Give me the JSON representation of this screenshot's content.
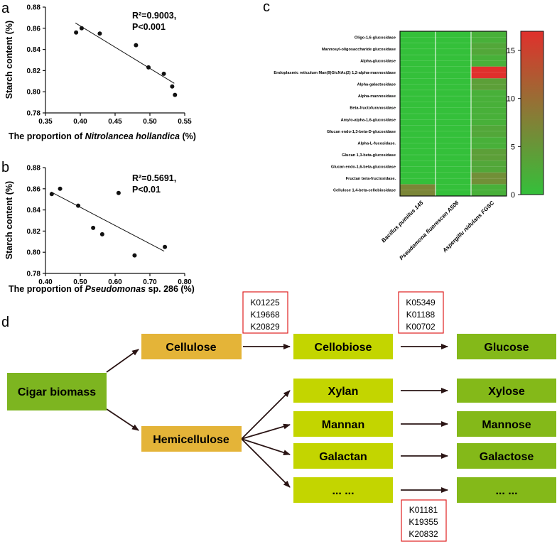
{
  "panels": {
    "a": "a",
    "b": "b",
    "c": "c",
    "d": "d"
  },
  "chart_data": [
    {
      "id": "a",
      "type": "scatter",
      "title": "",
      "ylabel": "Starch content (%)",
      "xlabel_parts": [
        {
          "t": "The proportion of ",
          "i": false
        },
        {
          "t": "Nitrolancea hollandica",
          "i": true
        },
        {
          "t": " (%)",
          "i": false
        }
      ],
      "xlim": [
        0.35,
        0.55
      ],
      "ylim": [
        0.78,
        0.88
      ],
      "xticks": [
        "0.35",
        "0.40",
        "0.45",
        "0.50",
        "0.55"
      ],
      "yticks": [
        "0.78",
        "0.80",
        "0.82",
        "0.84",
        "0.86",
        "0.88"
      ],
      "annotation": [
        "R²=0.9003,",
        "P<0.001"
      ],
      "points": [
        {
          "x": 0.394,
          "y": 0.856
        },
        {
          "x": 0.402,
          "y": 0.86
        },
        {
          "x": 0.428,
          "y": 0.855
        },
        {
          "x": 0.48,
          "y": 0.844
        },
        {
          "x": 0.498,
          "y": 0.823
        },
        {
          "x": 0.52,
          "y": 0.817
        },
        {
          "x": 0.532,
          "y": 0.805
        },
        {
          "x": 0.536,
          "y": 0.797
        }
      ],
      "fit": [
        {
          "x": 0.393,
          "y": 0.865
        },
        {
          "x": 0.535,
          "y": 0.808
        }
      ],
      "grid": false
    },
    {
      "id": "b",
      "type": "scatter",
      "title": "",
      "ylabel": "Starch content (%)",
      "xlabel_parts": [
        {
          "t": "The proportion of ",
          "i": false
        },
        {
          "t": "Pseudomonas",
          "i": true
        },
        {
          "t": " sp. 286 (%)",
          "i": false
        }
      ],
      "xlim": [
        0.4,
        0.8
      ],
      "ylim": [
        0.78,
        0.88
      ],
      "xticks": [
        "0.40",
        "0.50",
        "0.60",
        "0.70",
        "0.80"
      ],
      "yticks": [
        "0.78",
        "0.80",
        "0.82",
        "0.84",
        "0.86",
        "0.88"
      ],
      "annotation": [
        "R²=0.5691,",
        "P<0.01"
      ],
      "points": [
        {
          "x": 0.418,
          "y": 0.855
        },
        {
          "x": 0.442,
          "y": 0.86
        },
        {
          "x": 0.494,
          "y": 0.844
        },
        {
          "x": 0.537,
          "y": 0.823
        },
        {
          "x": 0.563,
          "y": 0.817
        },
        {
          "x": 0.61,
          "y": 0.856
        },
        {
          "x": 0.656,
          "y": 0.797
        },
        {
          "x": 0.743,
          "y": 0.805
        }
      ],
      "fit": [
        {
          "x": 0.416,
          "y": 0.857
        },
        {
          "x": 0.741,
          "y": 0.801
        }
      ],
      "grid": false
    },
    {
      "id": "c",
      "type": "heatmap",
      "title": "",
      "rows": [
        "Oligo-1,6-glucosidase",
        "Mannosyl-oligosaccharide glucosidase",
        "Alpha-glucosidase",
        "Endoplasmic reticulum Man(9)GlcNAc(2) 1,2-alpha-mannosidase",
        "Alpha-galactosidase",
        "Alpha-mannosidase",
        "Beta-fructofuranosidase",
        "Amylo-alpha-1,6-glucosidase",
        "Glucan endo-1,3-beta-D-glucosidase",
        "Alpha-L-fucosidase.",
        "Glucan 1,3-beta-glucosidase",
        "Glucan endo-1,6-beta-glucosidase",
        "Fructan beta-fructosidase.",
        "Cellulose 1,4-beta-cellobiosidase"
      ],
      "columns": [
        "Bacillus pumilus 145",
        "Pseudomona fluorescen A506",
        "Aspergillu nidulans FGSC"
      ],
      "values": [
        [
          0,
          0,
          2
        ],
        [
          0,
          0,
          3
        ],
        [
          0,
          0,
          2
        ],
        [
          0,
          0,
          17
        ],
        [
          0,
          0,
          4
        ],
        [
          0,
          0,
          2
        ],
        [
          0,
          0,
          2
        ],
        [
          0,
          0,
          2
        ],
        [
          0,
          0,
          3
        ],
        [
          0,
          0,
          2
        ],
        [
          0,
          0,
          4
        ],
        [
          0,
          0,
          3
        ],
        [
          0,
          0,
          6
        ],
        [
          7,
          0,
          2
        ]
      ],
      "sub_rows": 2,
      "colorbar": {
        "min": 0,
        "max": 17,
        "ticks": [
          "0",
          "5",
          "10",
          "15"
        ],
        "tick_values": [
          0,
          5,
          10,
          15
        ],
        "low": "#34c03a",
        "high": "#e0302c"
      }
    }
  ],
  "pathway": {
    "source": "Cigar biomass",
    "cellulose": "Cellulose",
    "hemicellulose": "Hemicellulose",
    "middle": [
      "Cellobiose",
      "Xylan",
      "Mannan",
      "Galactan",
      "... ..."
    ],
    "products": [
      "Glucose",
      "Xylose",
      "Mannose",
      "Galactose",
      "... ..."
    ],
    "kos": [
      [
        "K01225",
        "K19668",
        "K20829"
      ],
      [
        "K05349",
        "K01188",
        "K00702"
      ],
      [
        "K01181",
        "K19355",
        "K20832"
      ]
    ],
    "colors": {
      "source": "#7db520",
      "hemi": "#e4b438",
      "middle": "#c3d500",
      "product": "#84b919",
      "kbox": "#e02020"
    }
  }
}
